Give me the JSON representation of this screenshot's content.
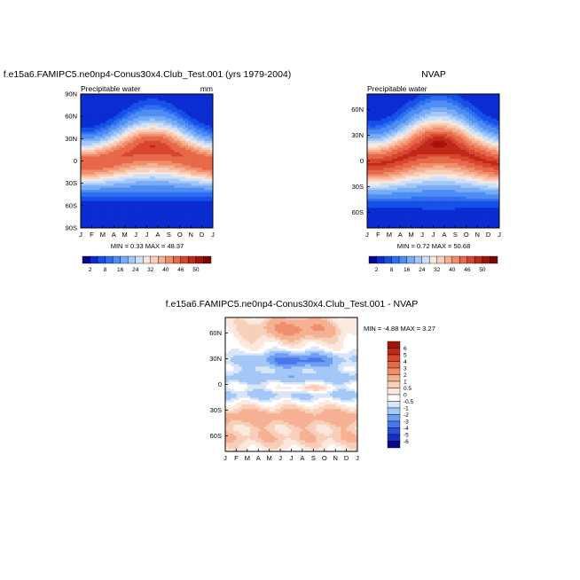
{
  "colorbar_top": {
    "labels": [
      "2",
      "8",
      "16",
      "24",
      "32",
      "40",
      "46",
      "50"
    ],
    "colors": [
      "#08088a",
      "#0a2cd2",
      "#1650e8",
      "#2e6ff0",
      "#4e8ef4",
      "#78acf6",
      "#a3c8f8",
      "#cde0f9",
      "#f7e8df",
      "#f8cfb9",
      "#f6b092",
      "#f08e6c",
      "#e8684a",
      "#d84630",
      "#c02818",
      "#a0140c",
      "#7c0804"
    ]
  },
  "colorbar_diff": {
    "labels": [
      "6",
      "5",
      "4",
      "3",
      "2",
      "1",
      "0.5",
      "0",
      "-0.5",
      "-1",
      "-2",
      "-3",
      "-4",
      "-5",
      "-6"
    ],
    "colors": [
      "#a0140c",
      "#c02818",
      "#d84630",
      "#e8684a",
      "#f08e6c",
      "#f6b092",
      "#f8cfb9",
      "#fbe9dd",
      "#ffffff",
      "#d8e6f8",
      "#a3c8f8",
      "#6e9ef2",
      "#4a78ec",
      "#2a4edc",
      "#1630c0",
      "#08088a"
    ]
  },
  "chart_data": [
    {
      "type": "heatmap",
      "title": "f.e15a6.FAMIPC5.ne0np4-Conus30x4.Club_Test.001 (yrs 1979-2004)",
      "left_string": "Precipitable water",
      "right_string": "mm",
      "stats": "MIN =   0.33 MAX =  48.37",
      "x_ticks": [
        "J",
        "F",
        "M",
        "A",
        "M",
        "J",
        "J",
        "A",
        "S",
        "O",
        "N",
        "D",
        "J"
      ],
      "y_ticks": [
        "90N",
        "60N",
        "30N",
        "0",
        "30S",
        "60S",
        "90S"
      ],
      "ylim": [
        -90,
        90
      ],
      "min": 0.33,
      "max": 48.37,
      "levels": [
        2,
        4,
        6,
        8,
        12,
        16,
        20,
        24,
        28,
        32,
        36,
        40,
        44,
        46,
        48,
        50
      ]
    },
    {
      "type": "heatmap",
      "title": "NVAP",
      "left_string": "Precipitable water",
      "stats": "MIN =   0.72 MAX =  50.68",
      "x_ticks": [
        "J",
        "F",
        "M",
        "A",
        "M",
        "J",
        "J",
        "A",
        "S",
        "O",
        "N",
        "D",
        "J"
      ],
      "y_ticks": [
        "60N",
        "30N",
        "0",
        "30S",
        "60S"
      ],
      "ylim": [
        -78,
        78
      ],
      "min": 0.72,
      "max": 50.68,
      "levels": [
        2,
        4,
        6,
        8,
        12,
        16,
        20,
        24,
        28,
        32,
        36,
        40,
        44,
        46,
        48,
        50
      ]
    },
    {
      "type": "heatmap",
      "title": "f.e15a6.FAMIPC5.ne0np4-Conus30x4.Club_Test.001 - NVAP",
      "stats": "MIN =  -4.88 MAX =   3.27",
      "x_ticks": [
        "J",
        "F",
        "M",
        "A",
        "M",
        "J",
        "J",
        "A",
        "S",
        "O",
        "N",
        "D",
        "J"
      ],
      "y_ticks": [
        "60N",
        "30N",
        "0",
        "30S",
        "60S"
      ],
      "ylim": [
        -78,
        78
      ],
      "min": -4.88,
      "max": 3.27,
      "levels": [
        -6,
        -5,
        -4,
        -3,
        -2,
        -1,
        -0.5,
        0,
        0.5,
        1,
        2,
        3,
        4,
        5,
        6
      ]
    }
  ]
}
